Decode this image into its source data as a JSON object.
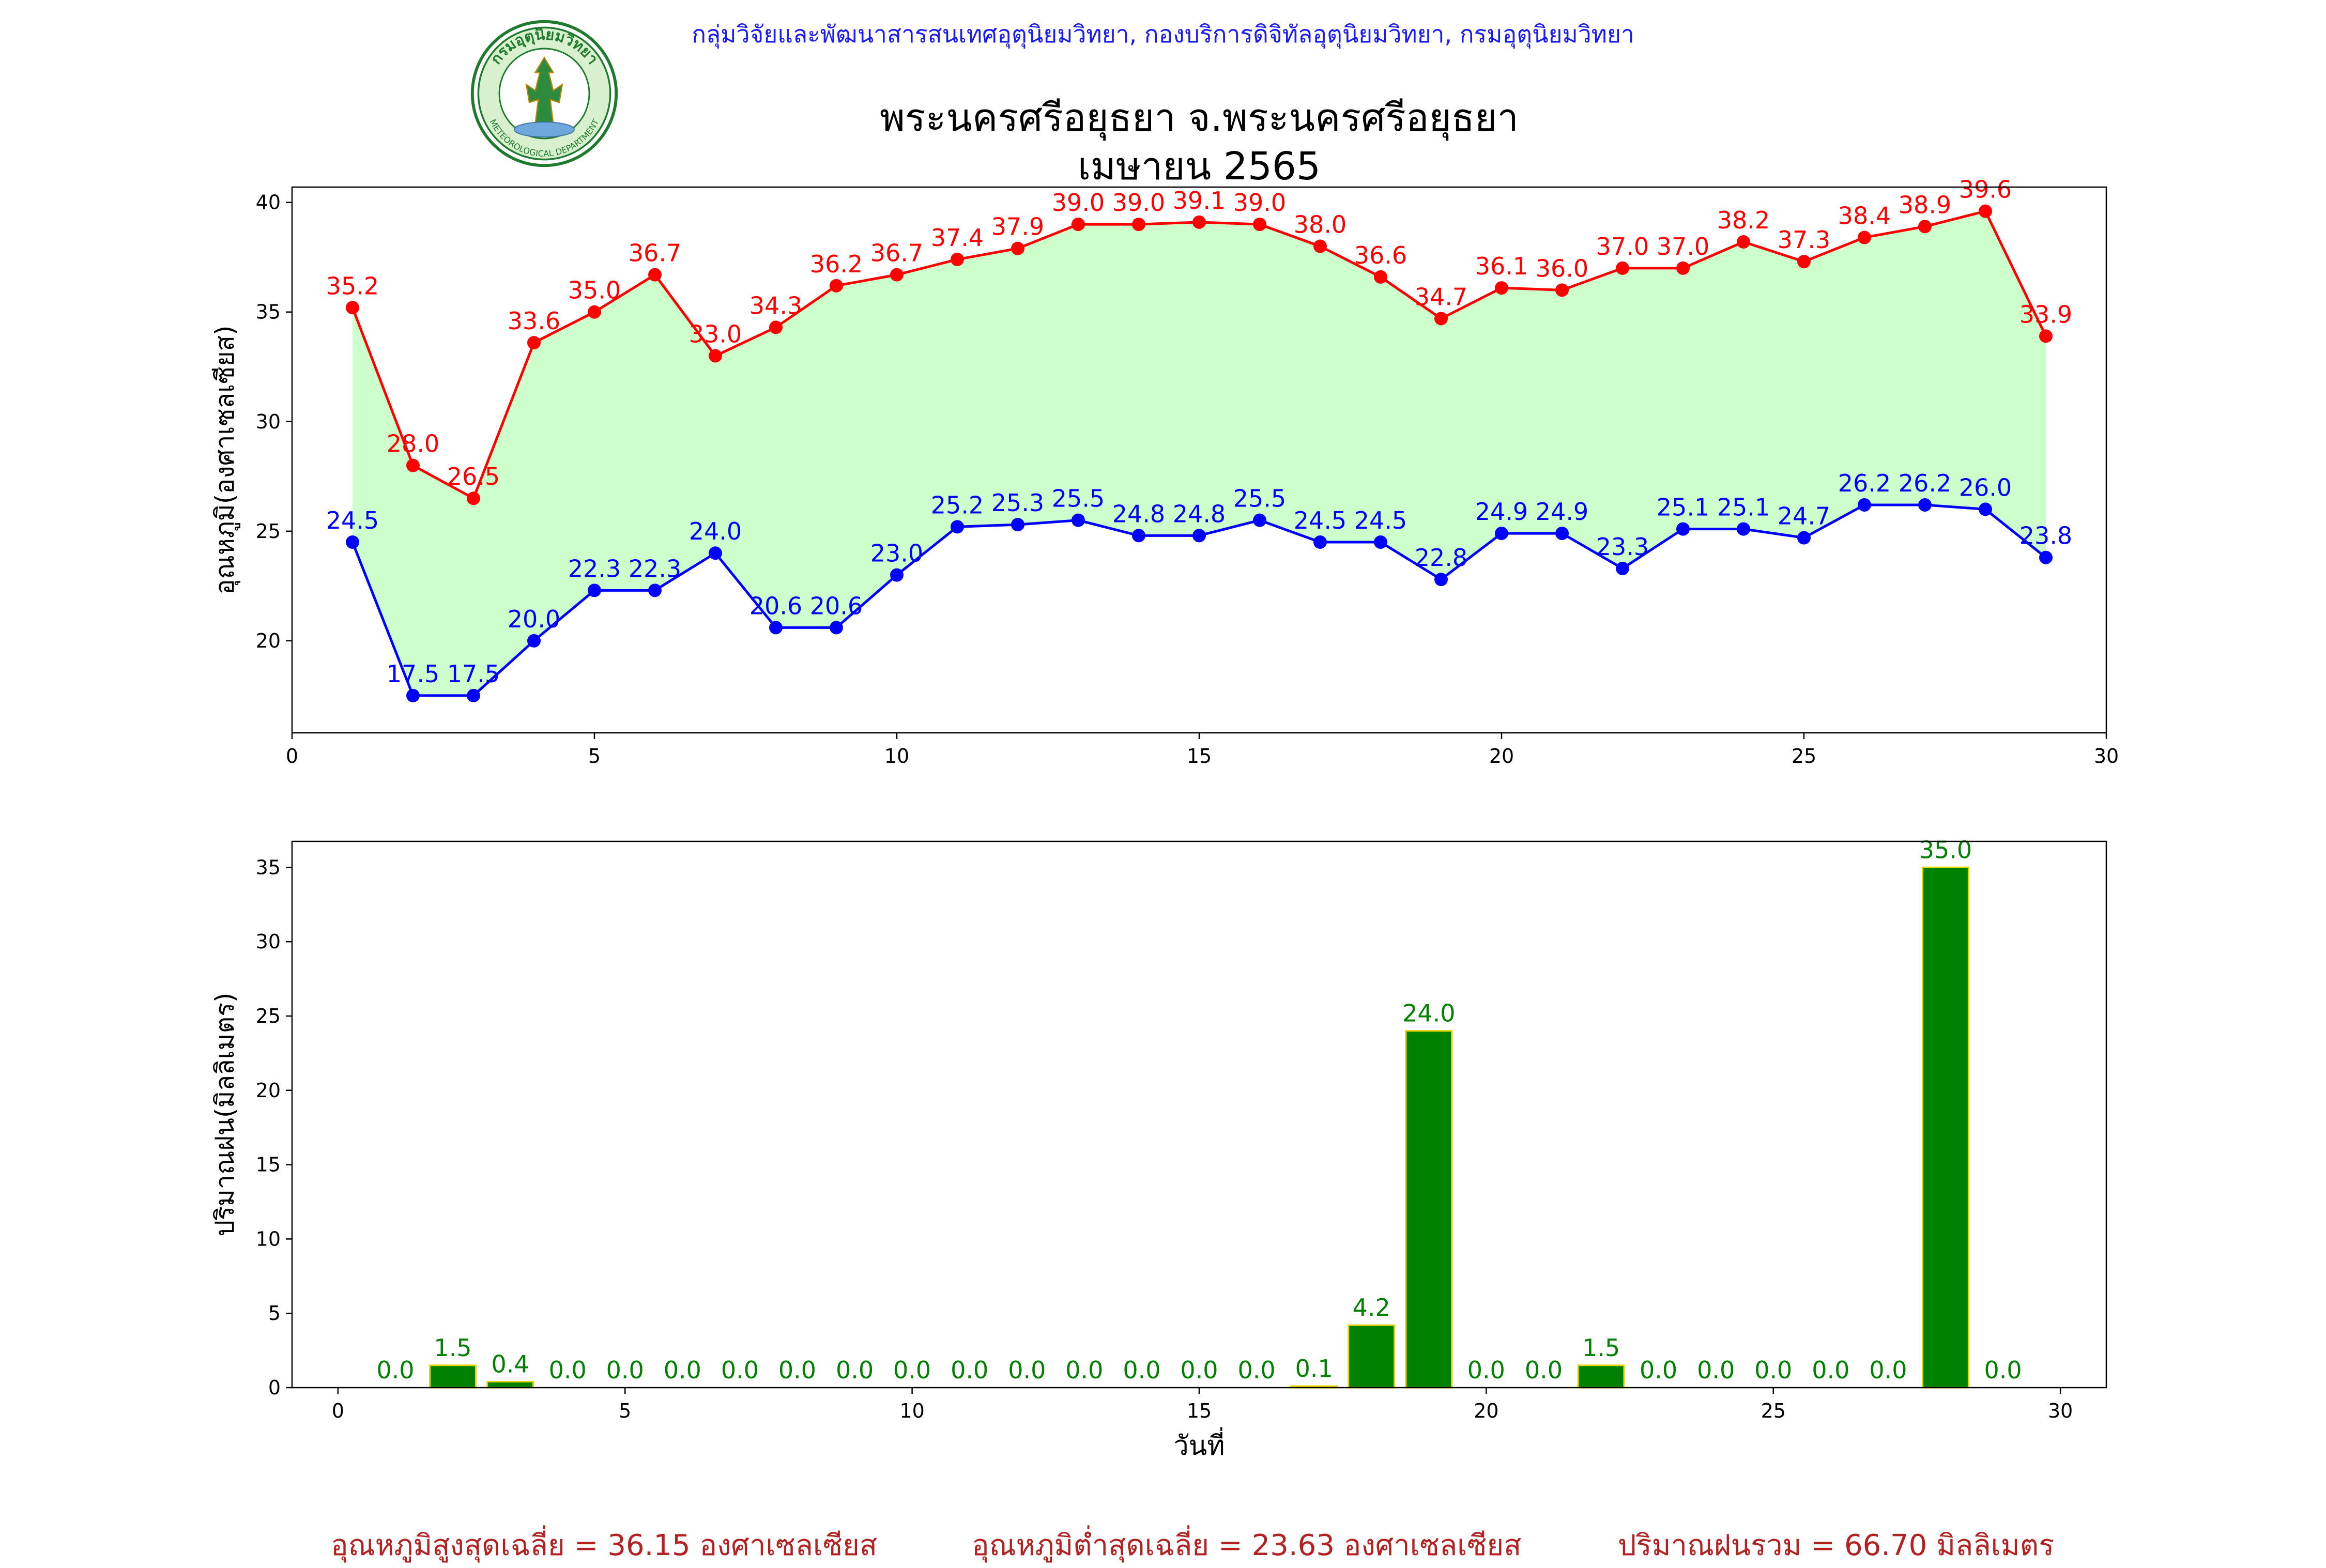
{
  "header": {
    "org_line": "กลุ่มวิจัยและพัฒนาสารสนเทศอุตุนิยมวิทยา, กองบริการดิจิทัลอุตุนิยมวิทยา, กรมอุตุนิยมวิทยา",
    "title_line1": "พระนครศรีอยุธยา จ.พระนครศรีอยุธยา",
    "title_line2": "เมษายน 2565",
    "logo_text": "กรมอุตุนิยมวิทยา",
    "logo_subtext": "METEOROLOGICAL DEPARTMENT"
  },
  "colors": {
    "max_temp": "#ff0000",
    "min_temp": "#0000ff",
    "band_fill": "#ccffcc",
    "rain_bar": "#008000",
    "rain_edge": "#e6d200",
    "rain_label": "#008000",
    "summary_text": "#b22222",
    "header_text": "#1c1cf0"
  },
  "chart_data": [
    {
      "type": "line",
      "ylabel": "อุณหภูมิ(องศาเซลเซียส)",
      "xlabel": "",
      "xlim": [
        0,
        30
      ],
      "ylim": [
        15.8,
        40.7
      ],
      "xticks": [
        0,
        5,
        10,
        15,
        20,
        25,
        30
      ],
      "yticks": [
        20,
        25,
        30,
        35,
        40
      ],
      "x": [
        1,
        2,
        3,
        4,
        5,
        6,
        7,
        8,
        9,
        10,
        11,
        12,
        13,
        14,
        15,
        16,
        17,
        18,
        19,
        20,
        21,
        22,
        23,
        24,
        25,
        26,
        27,
        28,
        29
      ],
      "series": [
        {
          "key": "max",
          "values": [
            35.2,
            28.0,
            26.5,
            33.6,
            35.0,
            36.7,
            33.0,
            34.3,
            36.2,
            36.7,
            37.4,
            37.9,
            39.0,
            39.0,
            39.1,
            39.0,
            38.0,
            36.6,
            34.7,
            36.1,
            36.0,
            37.0,
            37.0,
            38.2,
            37.3,
            38.4,
            38.9,
            39.6,
            33.9
          ]
        },
        {
          "key": "min",
          "values": [
            24.5,
            17.5,
            17.5,
            20.0,
            22.3,
            22.3,
            24.0,
            20.6,
            20.6,
            23.0,
            25.2,
            25.3,
            25.5,
            24.8,
            24.8,
            25.5,
            24.5,
            24.5,
            22.8,
            24.9,
            24.9,
            23.3,
            25.1,
            25.1,
            24.7,
            26.2,
            26.2,
            26.0,
            23.8
          ]
        }
      ],
      "fill_between": [
        "max",
        "min"
      ],
      "grid": false,
      "legend": "none"
    },
    {
      "type": "bar",
      "ylabel": "ปริมาณฝน(มิลลิเมตร)",
      "xlabel": "วันที่",
      "xlim": [
        -0.8,
        30.8
      ],
      "ylim": [
        0,
        36.75
      ],
      "xticks": [
        0,
        5,
        10,
        15,
        20,
        25,
        30
      ],
      "yticks": [
        0,
        5,
        10,
        15,
        20,
        25,
        30,
        35
      ],
      "x": [
        1,
        2,
        3,
        4,
        5,
        6,
        7,
        8,
        9,
        10,
        11,
        12,
        13,
        14,
        15,
        16,
        17,
        18,
        19,
        20,
        21,
        22,
        23,
        24,
        25,
        26,
        27,
        28,
        29
      ],
      "values": [
        0.0,
        1.5,
        0.4,
        0.0,
        0.0,
        0.0,
        0.0,
        0.0,
        0.0,
        0.0,
        0.0,
        0.0,
        0.0,
        0.0,
        0.0,
        0.0,
        0.1,
        4.2,
        24.0,
        0.0,
        0.0,
        1.5,
        0.0,
        0.0,
        0.0,
        0.0,
        0.0,
        35.0,
        0.0
      ],
      "grid": false,
      "legend": "none"
    }
  ],
  "summary": {
    "avg_max": "อุณหภูมิสูงสุดเฉลี่ย = 36.15 องศาเซลเซียส",
    "avg_min": "อุณหภูมิต่ำสุดเฉลี่ย = 23.63 องศาเซลเซียส",
    "total_rain": "ปริมาณฝนรวม = 66.70 มิลลิเมตร"
  }
}
